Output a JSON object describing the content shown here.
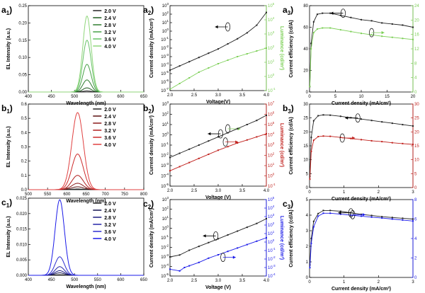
{
  "chart_data": [
    {
      "id": "a1",
      "panel_label": "a",
      "panel_sub": "1",
      "type": "line",
      "xlabel": "Wavelength (nm)",
      "ylabel": "EL Intensity (a.u.)",
      "xlim": [
        400,
        650
      ],
      "ylim": [
        0,
        0.25
      ],
      "xticks": [
        400,
        450,
        500,
        550,
        600,
        650
      ],
      "yticks": [
        0,
        0.05,
        0.1,
        0.15,
        0.2,
        0.25
      ],
      "ytick_labels": [
        "0.00",
        "0.05",
        "0.10",
        "0.15",
        "0.20",
        "0.25"
      ],
      "peak_center": 527,
      "peak_width": 9,
      "series": [
        {
          "name": "2.0 V",
          "peak": 0.003,
          "color": "#222222"
        },
        {
          "name": "2.4 V",
          "peak": 0.012,
          "color": "#1e5a1e"
        },
        {
          "name": "2.8 V",
          "peak": 0.035,
          "color": "#2f7d2f"
        },
        {
          "name": "3.2 V",
          "peak": 0.08,
          "color": "#47a047"
        },
        {
          "name": "3.6 V",
          "peak": 0.15,
          "color": "#66c266"
        },
        {
          "name": "4.0 V",
          "peak": 0.22,
          "color": "#8fd67a"
        }
      ],
      "legend": "top-right",
      "grid": false
    },
    {
      "id": "a2",
      "panel_label": "a",
      "panel_sub": "2",
      "type": "line",
      "xlabel": "Voltage(V)",
      "ylabel": "Current density (mA/cm²)",
      "y2label": "Luminance (cd/m²)",
      "xlim": [
        2.0,
        4.0
      ],
      "xticks": [
        2.0,
        2.5,
        3.0,
        3.5,
        4.0
      ],
      "xtick_labels": [
        "2.0",
        "2.5",
        "3.0",
        "3.5",
        "4.0"
      ],
      "ylog": [
        -7,
        3
      ],
      "y2log": [
        -1,
        5
      ],
      "y_color": "#000000",
      "y2_color": "#7ccf56",
      "ytick_exps": [
        -7,
        -6,
        -5,
        -4,
        -3,
        -2,
        -1,
        0,
        1,
        2,
        3
      ],
      "y2tick_exps": [
        -1,
        0,
        1,
        2,
        3,
        4,
        5
      ],
      "series": [
        {
          "axis": "left",
          "color": "#222222",
          "x": [
            2.0,
            2.2,
            2.4,
            2.6,
            2.8,
            3.0,
            3.2,
            3.4,
            3.6,
            3.8,
            4.0
          ],
          "y": [
            -4.6,
            -4.1,
            -3.6,
            -3.1,
            -2.6,
            -2.1,
            -1.5,
            -0.9,
            -0.2,
            0.7,
            2.2
          ]
        },
        {
          "axis": "right",
          "color": "#7ccf56",
          "x": [
            2.0,
            2.2,
            2.4,
            2.6,
            2.8,
            3.0,
            3.2,
            3.4,
            3.6,
            3.8,
            4.0
          ],
          "y": [
            -0.9,
            -0.5,
            -0.1,
            0.3,
            0.6,
            0.9,
            1.15,
            1.4,
            1.6,
            1.8,
            2.0
          ]
        }
      ],
      "arrow_left_at": [
        3.2,
        0.5
      ],
      "arrow_right_at": [
        3.2,
        -3.7
      ]
    },
    {
      "id": "a3",
      "panel_label": "a",
      "panel_sub": "3",
      "type": "line",
      "xlabel": "Current density (mA/cm²)",
      "ylabel": "Current efficiency (cd/A)",
      "y2label": "EQE (%)",
      "xlim": [
        0,
        20
      ],
      "ylim": [
        0,
        80
      ],
      "y2lim": [
        0,
        24
      ],
      "xticks": [
        0,
        5,
        10,
        15,
        20
      ],
      "yticks": [
        0,
        20,
        40,
        60,
        80
      ],
      "y2ticks": [
        0,
        4,
        8,
        12,
        16,
        20,
        24
      ],
      "y_color": "#000000",
      "y2_color": "#7ccf56",
      "series": [
        {
          "axis": "left",
          "color": "#222222",
          "x": [
            0.05,
            0.3,
            0.8,
            1.5,
            2.5,
            4,
            6,
            8,
            10,
            12,
            14,
            16,
            18,
            20
          ],
          "y": [
            5,
            45,
            65,
            72,
            73,
            73,
            71,
            69,
            67,
            66,
            64,
            63,
            62,
            60
          ]
        },
        {
          "axis": "right",
          "color": "#7ccf56",
          "x": [
            0.05,
            0.3,
            0.8,
            1.5,
            2.5,
            4,
            6,
            8,
            10,
            12,
            14,
            16,
            18,
            20
          ],
          "y": [
            1.5,
            12,
            16.5,
            17.5,
            17.8,
            17.8,
            17.3,
            16.8,
            16.3,
            15.9,
            15.5,
            15.2,
            14.9,
            14.6
          ]
        }
      ],
      "arrow_left_at": [
        6.5,
        73
      ],
      "arrow_right_at": [
        12,
        16.5
      ]
    },
    {
      "id": "b1",
      "panel_label": "b",
      "panel_sub": "1",
      "type": "line",
      "xlabel": "Wavelength (nm)",
      "ylabel": "EL Intensity (a.u.)",
      "xlim": [
        500,
        800
      ],
      "ylim": [
        0,
        0.6
      ],
      "xticks": [
        500,
        550,
        600,
        650,
        700,
        750,
        800
      ],
      "yticks": [
        0,
        0.1,
        0.2,
        0.3,
        0.4,
        0.5,
        0.6
      ],
      "ytick_labels": [
        "0.0",
        "0.1",
        "0.2",
        "0.3",
        "0.4",
        "0.5",
        "0.6"
      ],
      "peak_center": 628,
      "peak_width": 15,
      "series": [
        {
          "name": "2.0 V",
          "peak": 0.005,
          "color": "#222222"
        },
        {
          "name": "2.4 V",
          "peak": 0.02,
          "color": "#5a1010"
        },
        {
          "name": "2.8 V",
          "peak": 0.045,
          "color": "#8a1a1a"
        },
        {
          "name": "3.2 V",
          "peak": 0.1,
          "color": "#b01f1f"
        },
        {
          "name": "3.6 V",
          "peak": 0.25,
          "color": "#cc2a2a"
        },
        {
          "name": "4.0 V",
          "peak": 0.54,
          "color": "#e04040"
        }
      ],
      "legend": "top-right",
      "grid": false
    },
    {
      "id": "b2",
      "panel_label": "b",
      "panel_sub": "2",
      "type": "line",
      "xlabel": "Voltage (V)",
      "ylabel": "Current density (mA/cm²)",
      "y2label": "Luminance (cd/m²)",
      "xlim": [
        2.0,
        4.0
      ],
      "xticks": [
        2.0,
        2.5,
        3.0,
        3.5,
        4.0
      ],
      "xtick_labels": [
        "2.0",
        "2.5",
        "3.0",
        "3.5",
        "4.0"
      ],
      "ylog": [
        -5,
        3
      ],
      "y2log": [
        -1,
        7
      ],
      "y_color": "#000000",
      "y2_color": "#c0201c",
      "ytick_exps": [
        -5,
        -4,
        -3,
        -2,
        -1,
        0,
        1,
        2,
        3
      ],
      "y2tick_exps": [
        -1,
        0,
        1,
        2,
        3,
        4,
        5,
        6,
        7
      ],
      "series": [
        {
          "axis": "left",
          "color": "#222222",
          "x": [
            2.0,
            2.2,
            2.4,
            2.6,
            2.8,
            3.0,
            3.2,
            3.4,
            3.6,
            3.8,
            4.0
          ],
          "y": [
            -2.2,
            -1.8,
            -1.4,
            -1.0,
            -0.6,
            -0.2,
            0.2,
            0.6,
            1.0,
            1.4,
            1.9
          ]
        },
        {
          "axis": "right",
          "color": "#c0201c",
          "x": [
            2.0,
            2.2,
            2.4,
            2.6,
            2.8,
            3.0,
            3.2,
            3.4,
            3.6,
            3.8,
            4.0
          ],
          "y": [
            0.5,
            0.9,
            1.3,
            1.7,
            2.1,
            2.5,
            2.85,
            3.2,
            3.5,
            3.8,
            4.1
          ]
        }
      ],
      "arrow_left_at": [
        3.05,
        0.1
      ],
      "arrow_right_at": [
        3.15,
        3.3
      ]
    },
    {
      "id": "b3",
      "panel_label": "b",
      "panel_sub": "3",
      "type": "line",
      "xlabel": "Current density (mA/cm²)",
      "ylabel": "Current efficiency (cd/A)",
      "y2label": "EQE (%)",
      "xlim": [
        0,
        3
      ],
      "ylim": [
        0,
        30
      ],
      "y2lim": [
        0,
        30
      ],
      "xticks": [
        0,
        1,
        2,
        3
      ],
      "yticks": [
        0,
        5,
        10,
        15,
        20,
        25,
        30
      ],
      "y2ticks": [
        0,
        5,
        10,
        15,
        20,
        25,
        30
      ],
      "y_color": "#000000",
      "y2_color": "#c0201c",
      "series": [
        {
          "axis": "left",
          "color": "#222222",
          "x": [
            0.01,
            0.05,
            0.12,
            0.25,
            0.4,
            0.6,
            0.9,
            1.2,
            1.5,
            1.8,
            2.1,
            2.4,
            2.7,
            3.0
          ],
          "y": [
            4,
            18,
            24,
            25.8,
            26.1,
            26,
            25.6,
            25.1,
            24.6,
            24.1,
            23.6,
            23.1,
            22.6,
            22.1
          ]
        },
        {
          "axis": "right",
          "color": "#c0201c",
          "x": [
            0.01,
            0.05,
            0.12,
            0.25,
            0.4,
            0.6,
            0.9,
            1.2,
            1.5,
            1.8,
            2.1,
            2.4,
            2.7,
            3.0
          ],
          "y": [
            3,
            13,
            17,
            18.3,
            18.5,
            18.4,
            18,
            17.6,
            17.2,
            16.8,
            16.5,
            16.1,
            15.8,
            15.5
          ]
        }
      ],
      "arrow_left_at": [
        1.4,
        25
      ],
      "arrow_right_at": [
        0.95,
        17.8
      ]
    },
    {
      "id": "c1",
      "panel_label": "c",
      "panel_sub": "1",
      "type": "line",
      "xlabel": "Wavelength (nm)",
      "ylabel": "EL Intensity (a.u.)",
      "xlim": [
        400,
        650
      ],
      "ylim": [
        0,
        0.025
      ],
      "xticks": [
        400,
        450,
        500,
        550,
        600,
        650
      ],
      "yticks": [
        0,
        0.005,
        0.01,
        0.015,
        0.02,
        0.025
      ],
      "ytick_labels": [
        "0.000",
        "0.005",
        "0.010",
        "0.015",
        "0.020",
        "0.025"
      ],
      "peak_center": 468,
      "peak_width": 10,
      "series": [
        {
          "name": "2.0 V",
          "peak": 0.0002,
          "color": "#222222"
        },
        {
          "name": "2.4 V",
          "peak": 0.0008,
          "color": "#141450"
        },
        {
          "name": "2.8 V",
          "peak": 0.0015,
          "color": "#1c1c80"
        },
        {
          "name": "3.2 V",
          "peak": 0.0028,
          "color": "#2424a8"
        },
        {
          "name": "3.6 V",
          "peak": 0.006,
          "color": "#2e2ed0"
        },
        {
          "name": "4.0 V",
          "peak": 0.0245,
          "color": "#1a1ae8"
        }
      ],
      "legend": "top-right",
      "grid": false
    },
    {
      "id": "c2",
      "panel_label": "c",
      "panel_sub": "2",
      "type": "line",
      "xlabel": "Voltage (V)",
      "ylabel": "Current density (mA/cm²)",
      "y2label": "Luminance (cd/m²)",
      "xlim": [
        2.0,
        4.0
      ],
      "xticks": [
        2.0,
        2.5,
        3.0,
        3.5,
        4.0
      ],
      "xtick_labels": [
        "2.0",
        "2.5",
        "3.0",
        "3.5",
        "4.0"
      ],
      "ylog": [
        -5,
        3
      ],
      "y2log": [
        -4,
        5
      ],
      "y_color": "#000000",
      "y2_color": "#1a1ae8",
      "ytick_exps": [
        -5,
        -4,
        -3,
        -2,
        -1,
        0,
        1,
        2,
        3
      ],
      "y2tick_exps": [
        -4,
        -3,
        -2,
        -1,
        0,
        1,
        2,
        3,
        4,
        5
      ],
      "series": [
        {
          "axis": "left",
          "color": "#222222",
          "x": [
            2.0,
            2.2,
            2.4,
            2.6,
            2.8,
            3.0,
            3.2,
            3.4,
            3.6,
            3.8,
            4.0
          ],
          "y": [
            -3.0,
            -2.8,
            -2.3,
            -1.9,
            -1.5,
            -1.1,
            -0.7,
            -0.3,
            0.1,
            0.5,
            1.0
          ]
        },
        {
          "axis": "right",
          "color": "#1a1ae8",
          "x": [
            2.0,
            2.2,
            2.3,
            2.4,
            2.6,
            2.8,
            3.0,
            3.2,
            3.4,
            3.6,
            3.8,
            4.0
          ],
          "y": [
            -3.2,
            -3.4,
            -3.0,
            -2.8,
            -2.4,
            -1.9,
            -1.5,
            -1.1,
            -0.7,
            -0.3,
            0.1,
            0.5
          ]
        }
      ],
      "arrow_left_at": [
        2.95,
        -0.8
      ],
      "arrow_right_at": [
        3.1,
        -1.8
      ]
    },
    {
      "id": "c3",
      "panel_label": "c",
      "panel_sub": "3",
      "type": "line",
      "xlabel": "Current density (mA/cm²)",
      "ylabel": "Current efficiency (cd/A)",
      "y2label": "EQE (%)",
      "xlim": [
        0,
        3
      ],
      "ylim": [
        0,
        5
      ],
      "y2lim": [
        0,
        8
      ],
      "xticks": [
        0,
        1,
        2,
        3
      ],
      "yticks": [
        0,
        1,
        2,
        3,
        4,
        5
      ],
      "y2ticks": [
        0,
        2,
        4,
        6,
        8
      ],
      "y_color": "#000000",
      "y2_color": "#1a1ae8",
      "series": [
        {
          "axis": "left",
          "color": "#222222",
          "x": [
            0.01,
            0.05,
            0.12,
            0.25,
            0.4,
            0.6,
            0.9,
            1.2,
            1.5,
            1.8,
            2.1,
            2.4,
            2.7,
            3.0
          ],
          "y": [
            0.8,
            2.5,
            3.6,
            4.1,
            4.3,
            4.3,
            4.25,
            4.15,
            4.05,
            3.98,
            3.9,
            3.85,
            3.8,
            3.75
          ]
        },
        {
          "axis": "right",
          "color": "#1a1ae8",
          "x": [
            0.01,
            0.05,
            0.12,
            0.25,
            0.4,
            0.6,
            0.9,
            1.2,
            1.5,
            1.8,
            2.1,
            2.4,
            2.7,
            3.0
          ],
          "y": [
            1.0,
            3.5,
            5.2,
            6.3,
            6.6,
            6.6,
            6.5,
            6.4,
            6.3,
            6.2,
            6.1,
            6.0,
            5.9,
            5.8
          ]
        }
      ],
      "arrow_left_at": [
        1.2,
        4.15
      ],
      "arrow_right_at": [
        1.25,
        6.45
      ]
    }
  ]
}
